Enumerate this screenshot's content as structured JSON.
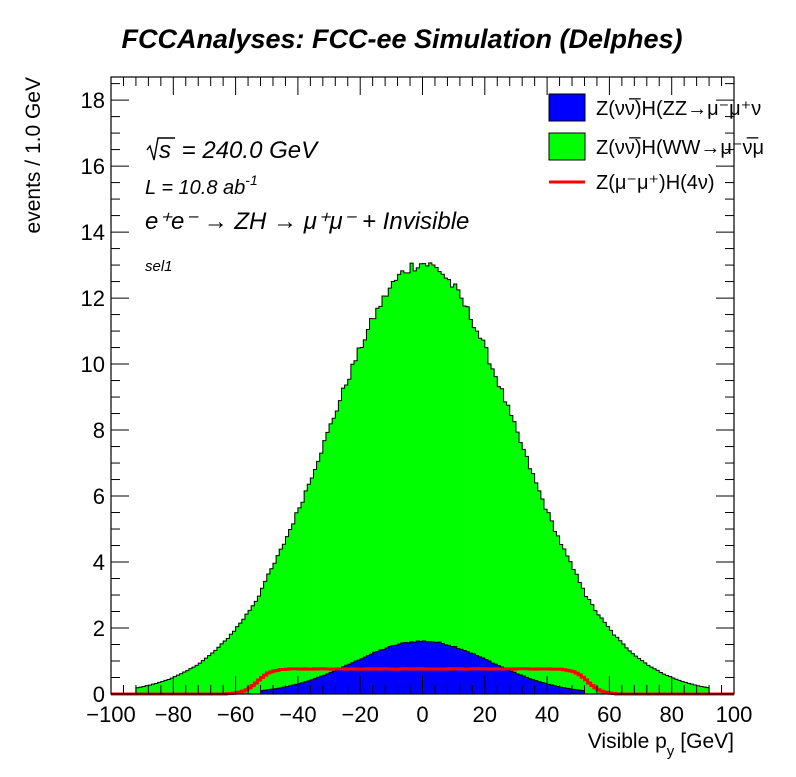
{
  "chart_data": {
    "type": "histogram",
    "title": "FCCAnalyses: FCC-ee Simulation (Delphes)",
    "xlabel": "Visible p",
    "xlabel_sub": "y",
    "xlabel_unit": "[GeV]",
    "ylabel": "events / 1.0 GeV",
    "xlim": [
      -100,
      100
    ],
    "ylim": [
      0,
      18.7
    ],
    "x_ticks": [
      -100,
      -80,
      -60,
      -40,
      -20,
      0,
      20,
      40,
      60,
      80,
      100
    ],
    "y_ticks": [
      0,
      2,
      4,
      6,
      8,
      10,
      12,
      14,
      16,
      18
    ],
    "x_tick_labels": [
      "−100",
      "−80",
      "−60",
      "−40",
      "−20",
      "0",
      "20",
      "40",
      "60",
      "80",
      "100"
    ],
    "y_tick_labels": [
      "0",
      "2",
      "4",
      "6",
      "8",
      "10",
      "12",
      "14",
      "16",
      "18"
    ],
    "bin_width": 1.0,
    "stacked": true,
    "annotations": {
      "sqrt_s": "s",
      "energy": " = 240.0 GeV",
      "lumi": "L = 10.8 ab",
      "lumi_exp": "-1",
      "process": "e⁺e⁻ → ZH → μ⁺μ⁻ + Invisible",
      "selection": "sel1"
    },
    "legend_position": "top-right",
    "series": [
      {
        "name": "Z(νν̅)H(ZZ→μ⁻μ⁺νν̅)",
        "legend_text": "Z(νν̅)H(ZZ→μ⁻μ⁺ν",
        "style": "fill",
        "color": "#0000ff",
        "shape": {
          "kind": "gauss",
          "peak": 1.6,
          "mean": 0,
          "sigma": 22,
          "support": 52
        }
      },
      {
        "name": "Z(νν̅)H(WW→μ⁻ν̅μ⁺ν)",
        "legend_text": "Z(νν̅)H(WW→μ⁻ν̅μ",
        "style": "fill",
        "color": "#00ff00",
        "shape": {
          "kind": "gauss",
          "peak": 11.45,
          "mean": 0,
          "sigma": 32,
          "support": 92
        }
      },
      {
        "name": "Z(μ⁻μ⁺)H(4ν)",
        "legend_text": "Z(μ⁻μ⁺)H(4ν)",
        "style": "line",
        "color": "#ff0000",
        "shape": {
          "kind": "plateau",
          "level": 0.76,
          "edge_left": -53,
          "edge_right": 53,
          "edge_width": 2.2
        }
      }
    ]
  }
}
